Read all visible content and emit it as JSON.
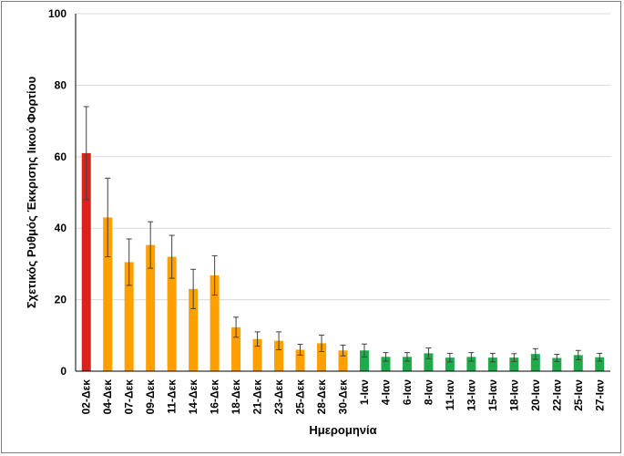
{
  "chart_data": {
    "type": "bar",
    "title": "",
    "xlabel": "Ημερομηνία",
    "ylabel": "Σχετικός Ρυθμός Έκκρισης Ιικού Φορτίου",
    "ylim": [
      0,
      100
    ],
    "yticks": [
      0,
      20,
      40,
      60,
      80,
      100
    ],
    "grid": true,
    "categories": [
      "02-Δεκ",
      "04-Δεκ",
      "07-Δεκ",
      "09-Δεκ",
      "11-Δεκ",
      "14-Δεκ",
      "16-Δεκ",
      "18-Δεκ",
      "21-Δεκ",
      "23-Δεκ",
      "25-Δεκ",
      "28-Δεκ",
      "30-Δεκ",
      "1-Ιαν",
      "4-Ιαν",
      "6-Ιαν",
      "8-Ιαν",
      "11-Ιαν",
      "13-Ιαν",
      "15-Ιαν",
      "18-Ιαν",
      "20-Ιαν",
      "22-Ιαν",
      "25-Ιαν",
      "27-Ιαν"
    ],
    "values": [
      61,
      43,
      30.5,
      35.3,
      32,
      23,
      26.8,
      12.3,
      9,
      8.5,
      6,
      7.8,
      5.8,
      5.8,
      4,
      4,
      5,
      3.8,
      4,
      3.8,
      3.8,
      4.8,
      3.7,
      4.5,
      3.9
    ],
    "error": [
      13,
      11,
      6.5,
      6.5,
      6,
      5.5,
      5.5,
      2.8,
      2,
      2.5,
      1.5,
      2.3,
      1.5,
      1.8,
      1.2,
      1.2,
      1.5,
      1.2,
      1.2,
      1.2,
      1.1,
      1.5,
      1,
      1.3,
      1.1
    ],
    "bar_colors": [
      "#d9221c",
      "#ff9f00",
      "#ff9f00",
      "#ff9f00",
      "#ff9f00",
      "#ff9f00",
      "#ff9f00",
      "#ff9f00",
      "#ff9f00",
      "#ff9f00",
      "#ff9f00",
      "#ff9f00",
      "#ff9f00",
      "#1fab4c",
      "#1fab4c",
      "#1fab4c",
      "#1fab4c",
      "#1fab4c",
      "#1fab4c",
      "#1fab4c",
      "#1fab4c",
      "#1fab4c",
      "#1fab4c",
      "#1fab4c",
      "#1fab4c"
    ],
    "colors": {
      "gridline": "#d9d9d9",
      "axis": "#000000",
      "errorbar": "#404040"
    }
  }
}
